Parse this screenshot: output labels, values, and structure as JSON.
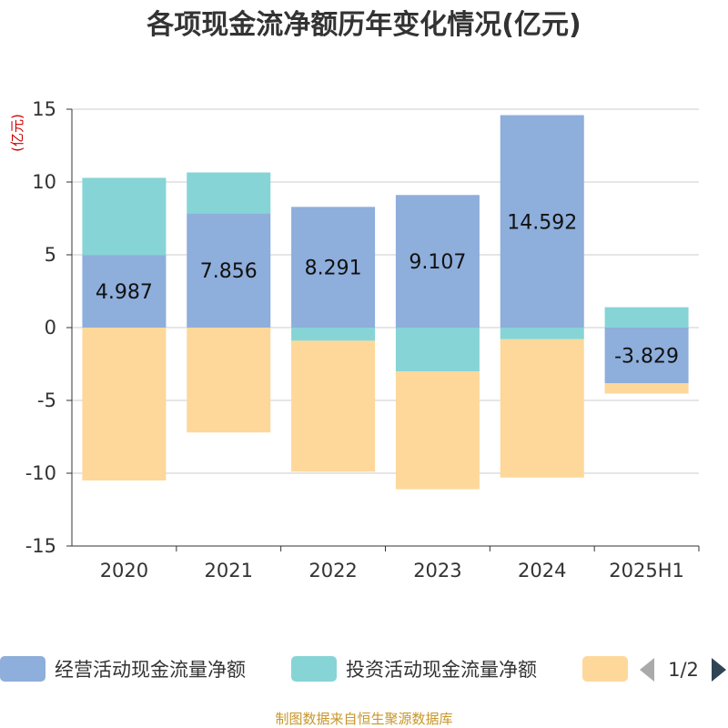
{
  "source_text": "制图数据来自恒生聚源数据库",
  "legend": {
    "pager": "1/2",
    "prev_icon": "triangle-left-icon",
    "next_icon": "triangle-right-icon"
  },
  "colors": {
    "title": "#333333",
    "unit": "#cc0000",
    "source": "#c8962a",
    "grid": "#cccccc",
    "axis": "#333333",
    "pager_prev": "#aaaaaa",
    "pager_next": "#2f4554"
  },
  "chart_data": {
    "type": "bar",
    "stacked": true,
    "title": "各项现金流净额历年变化情况(亿元)",
    "ylabel": "(亿元)",
    "categories": [
      "2020",
      "2021",
      "2022",
      "2023",
      "2024",
      "2025H1"
    ],
    "ylim": [
      -15,
      15
    ],
    "yticks": [
      15,
      10,
      5,
      0,
      -5,
      -10,
      -15
    ],
    "grid": true,
    "legend_position": "bottom",
    "series": [
      {
        "name": "经营活动现金流量净额",
        "color": "#8eaedb",
        "values": [
          4.987,
          7.856,
          8.291,
          9.107,
          14.592,
          -3.829
        ],
        "labels": [
          "4.987",
          "7.856",
          "8.291",
          "9.107",
          "14.592",
          "-3.829"
        ]
      },
      {
        "name": "投资活动现金流量净额",
        "color": "#86d4d6",
        "values": [
          5.3,
          2.8,
          -0.9,
          -3.0,
          -0.8,
          1.4
        ]
      },
      {
        "name": "",
        "color": "#fdd89a",
        "values": [
          -10.5,
          -7.2,
          -9.0,
          -8.1,
          -9.5,
          -0.7
        ]
      }
    ]
  }
}
